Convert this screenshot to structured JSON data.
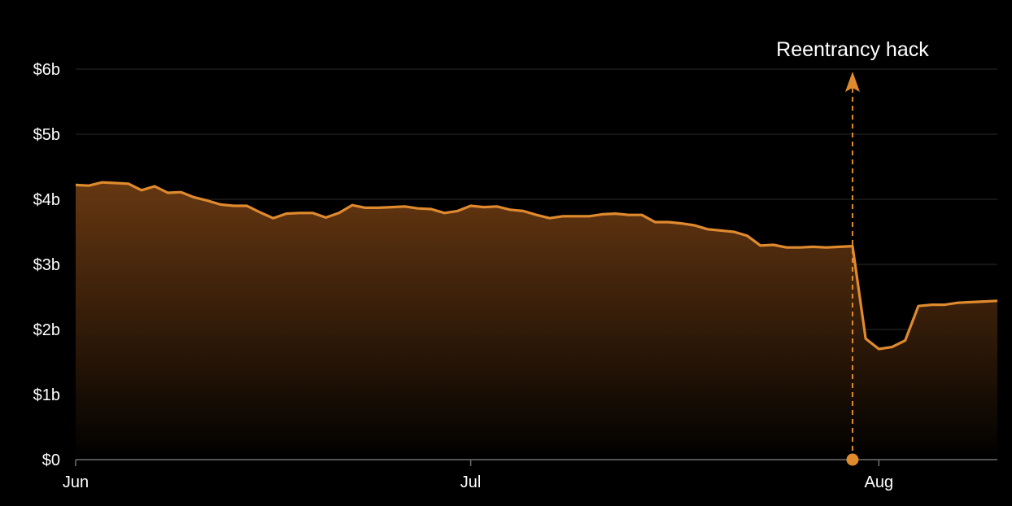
{
  "chart_data": {
    "type": "area",
    "title": "",
    "xlabel": "",
    "ylabel": "",
    "x_ticks": [
      "Jun",
      "Jul",
      "Aug"
    ],
    "y_ticks": [
      "$0",
      "$1b",
      "$2b",
      "$3b",
      "$4b",
      "$5b",
      "$6b"
    ],
    "ylim": [
      0,
      6
    ],
    "xlim": [
      "2016-06-01",
      "2016-08-10"
    ],
    "grid": true,
    "series": [
      {
        "color": "#e08a2e",
        "x": [
          "2016-06-01",
          "2016-06-02",
          "2016-06-03",
          "2016-06-04",
          "2016-06-05",
          "2016-06-06",
          "2016-06-07",
          "2016-06-08",
          "2016-06-09",
          "2016-06-10",
          "2016-06-11",
          "2016-06-12",
          "2016-06-13",
          "2016-06-14",
          "2016-06-15",
          "2016-06-16",
          "2016-06-17",
          "2016-06-18",
          "2016-06-19",
          "2016-06-20",
          "2016-06-21",
          "2016-06-22",
          "2016-06-23",
          "2016-06-24",
          "2016-06-25",
          "2016-06-26",
          "2016-06-27",
          "2016-06-28",
          "2016-06-29",
          "2016-06-30",
          "2016-07-01",
          "2016-07-02",
          "2016-07-03",
          "2016-07-04",
          "2016-07-05",
          "2016-07-06",
          "2016-07-07",
          "2016-07-08",
          "2016-07-09",
          "2016-07-10",
          "2016-07-11",
          "2016-07-12",
          "2016-07-13",
          "2016-07-14",
          "2016-07-15",
          "2016-07-16",
          "2016-07-17",
          "2016-07-18",
          "2016-07-19",
          "2016-07-20",
          "2016-07-21",
          "2016-07-22",
          "2016-07-23",
          "2016-07-24",
          "2016-07-25",
          "2016-07-26",
          "2016-07-27",
          "2016-07-28",
          "2016-07-29",
          "2016-07-30",
          "2016-07-31",
          "2016-08-01",
          "2016-08-02",
          "2016-08-03",
          "2016-08-04",
          "2016-08-05",
          "2016-08-06",
          "2016-08-07",
          "2016-08-08",
          "2016-08-09",
          "2016-08-10"
        ],
        "values": [
          4.22,
          4.21,
          4.26,
          4.25,
          4.24,
          4.14,
          4.2,
          4.1,
          4.11,
          4.03,
          3.98,
          3.92,
          3.9,
          3.9,
          3.8,
          3.71,
          3.78,
          3.79,
          3.79,
          3.72,
          3.79,
          3.91,
          3.87,
          3.87,
          3.88,
          3.89,
          3.86,
          3.85,
          3.79,
          3.82,
          3.9,
          3.88,
          3.89,
          3.84,
          3.82,
          3.76,
          3.71,
          3.74,
          3.74,
          3.74,
          3.77,
          3.78,
          3.76,
          3.76,
          3.65,
          3.65,
          3.63,
          3.6,
          3.54,
          3.52,
          3.5,
          3.44,
          3.29,
          3.3,
          3.26,
          3.26,
          3.27,
          3.26,
          3.27,
          3.28,
          1.86,
          1.7,
          1.73,
          1.83,
          2.36,
          2.38,
          2.38,
          2.41,
          2.42,
          2.43,
          2.44
        ]
      }
    ],
    "annotation": {
      "text": "Reentrancy hack",
      "x": "2016-07-30",
      "y": 0
    }
  }
}
